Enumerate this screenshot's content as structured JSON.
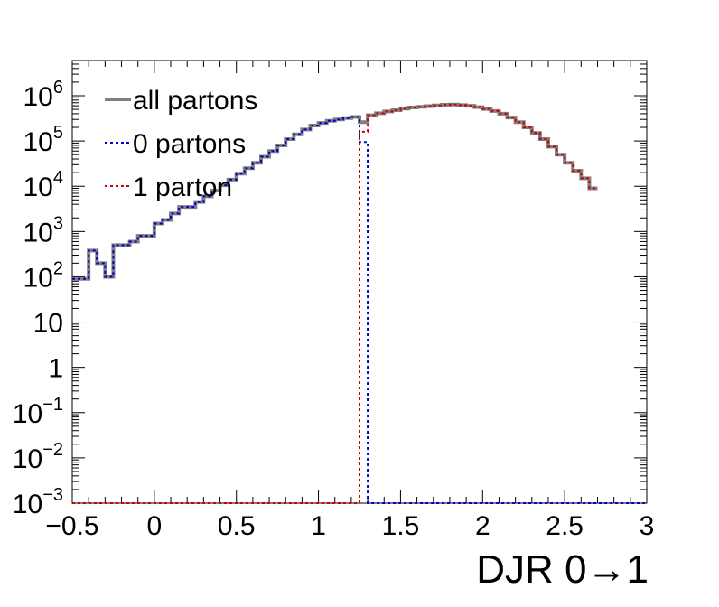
{
  "chart_data": {
    "type": "line",
    "title": "",
    "xlabel": "DJR 0→1",
    "ylabel": "",
    "xlim": [
      -0.5,
      3
    ],
    "ylim": [
      0.001,
      6000000
    ],
    "ylog": true,
    "grid": false,
    "legend_position": "top-left",
    "x_ticks": [
      {
        "value": -0.5,
        "label": "−0.5"
      },
      {
        "value": 0,
        "label": "0"
      },
      {
        "value": 0.5,
        "label": "0.5"
      },
      {
        "value": 1,
        "label": "1"
      },
      {
        "value": 1.5,
        "label": "1.5"
      },
      {
        "value": 2,
        "label": "2"
      },
      {
        "value": 2.5,
        "label": "2.5"
      },
      {
        "value": 3,
        "label": "3"
      }
    ],
    "y_ticks": [
      {
        "value": 0.001,
        "base": "10",
        "exp": "−3"
      },
      {
        "value": 0.01,
        "base": "10",
        "exp": "−2"
      },
      {
        "value": 0.1,
        "base": "10",
        "exp": "−1"
      },
      {
        "value": 1,
        "base": "1",
        "exp": ""
      },
      {
        "value": 10,
        "base": "10",
        "exp": ""
      },
      {
        "value": 100,
        "base": "10",
        "exp": "2"
      },
      {
        "value": 1000,
        "base": "10",
        "exp": "3"
      },
      {
        "value": 10000,
        "base": "10",
        "exp": "4"
      },
      {
        "value": 100000,
        "base": "10",
        "exp": "5"
      },
      {
        "value": 1000000,
        "base": "10",
        "exp": "6"
      }
    ],
    "bin_edges": [
      -0.5,
      -0.45,
      -0.4,
      -0.35,
      -0.3,
      -0.25,
      -0.2,
      -0.15,
      -0.1,
      -0.05,
      0,
      0.05,
      0.1,
      0.15,
      0.2,
      0.25,
      0.3,
      0.35,
      0.4,
      0.45,
      0.5,
      0.55,
      0.6,
      0.65,
      0.7,
      0.75,
      0.8,
      0.85,
      0.9,
      0.95,
      1,
      1.05,
      1.1,
      1.15,
      1.2,
      1.25,
      1.3,
      1.35,
      1.4,
      1.45,
      1.5,
      1.55,
      1.6,
      1.65,
      1.7,
      1.75,
      1.8,
      1.85,
      1.9,
      1.95,
      2,
      2.05,
      2.1,
      2.15,
      2.2,
      2.25,
      2.3,
      2.35,
      2.4,
      2.45,
      2.5,
      2.55,
      2.6,
      2.65,
      2.7,
      2.75,
      2.8,
      2.85,
      2.9,
      2.95,
      3
    ],
    "series": [
      {
        "name": "all partons",
        "color": "#808080",
        "style": "solid",
        "values": [
          90,
          90,
          380,
          200,
          100,
          500,
          500,
          600,
          800,
          800,
          1500,
          1800,
          2500,
          3500,
          3500,
          4500,
          6000,
          8000,
          10500,
          14000,
          19000,
          25000,
          33000,
          45000,
          60000,
          80000,
          110000,
          140000,
          180000,
          220000,
          250000,
          280000,
          300000,
          320000,
          340000,
          260000,
          370000,
          410000,
          450000,
          480000,
          520000,
          550000,
          570000,
          590000,
          610000,
          630000,
          640000,
          620000,
          600000,
          560000,
          510000,
          460000,
          400000,
          330000,
          260000,
          200000,
          150000,
          110000,
          75000,
          50000,
          33000,
          22000,
          15000,
          9000
        ]
      },
      {
        "name": "0 partons",
        "color": "#0000cc",
        "style": "dotted",
        "values": [
          90,
          90,
          380,
          200,
          100,
          500,
          500,
          600,
          800,
          800,
          1500,
          1800,
          2500,
          3500,
          3500,
          4500,
          6000,
          8000,
          10500,
          14000,
          19000,
          25000,
          33000,
          45000,
          60000,
          80000,
          110000,
          140000,
          180000,
          220000,
          250000,
          280000,
          300000,
          320000,
          340000,
          95000,
          0.001,
          0.001,
          0.001,
          0.001,
          0.001,
          0.001,
          0.001,
          0.001,
          0.001,
          0.001,
          0.001,
          0.001,
          0.001,
          0.001,
          0.001,
          0.001,
          0.001,
          0.001,
          0.001,
          0.001,
          0.001,
          0.001,
          0.001,
          0.001,
          0.001,
          0.001,
          0.001,
          0.001,
          0.001,
          0.001,
          0.001,
          0.001,
          0.001,
          0.001
        ]
      },
      {
        "name": "1 parton",
        "color": "#cc0000",
        "style": "dotted",
        "values": [
          0.001,
          0.001,
          0.001,
          0.001,
          0.001,
          0.001,
          0.001,
          0.001,
          0.001,
          0.001,
          0.001,
          0.001,
          0.001,
          0.001,
          0.001,
          0.001,
          0.001,
          0.001,
          0.001,
          0.001,
          0.001,
          0.001,
          0.001,
          0.001,
          0.001,
          0.001,
          0.001,
          0.001,
          0.001,
          0.001,
          0.001,
          0.001,
          0.001,
          0.001,
          0.001,
          160000,
          370000,
          410000,
          450000,
          480000,
          520000,
          550000,
          570000,
          590000,
          610000,
          630000,
          640000,
          620000,
          600000,
          560000,
          510000,
          460000,
          400000,
          330000,
          260000,
          200000,
          150000,
          110000,
          75000,
          50000,
          33000,
          22000,
          15000,
          9000
        ]
      }
    ]
  }
}
